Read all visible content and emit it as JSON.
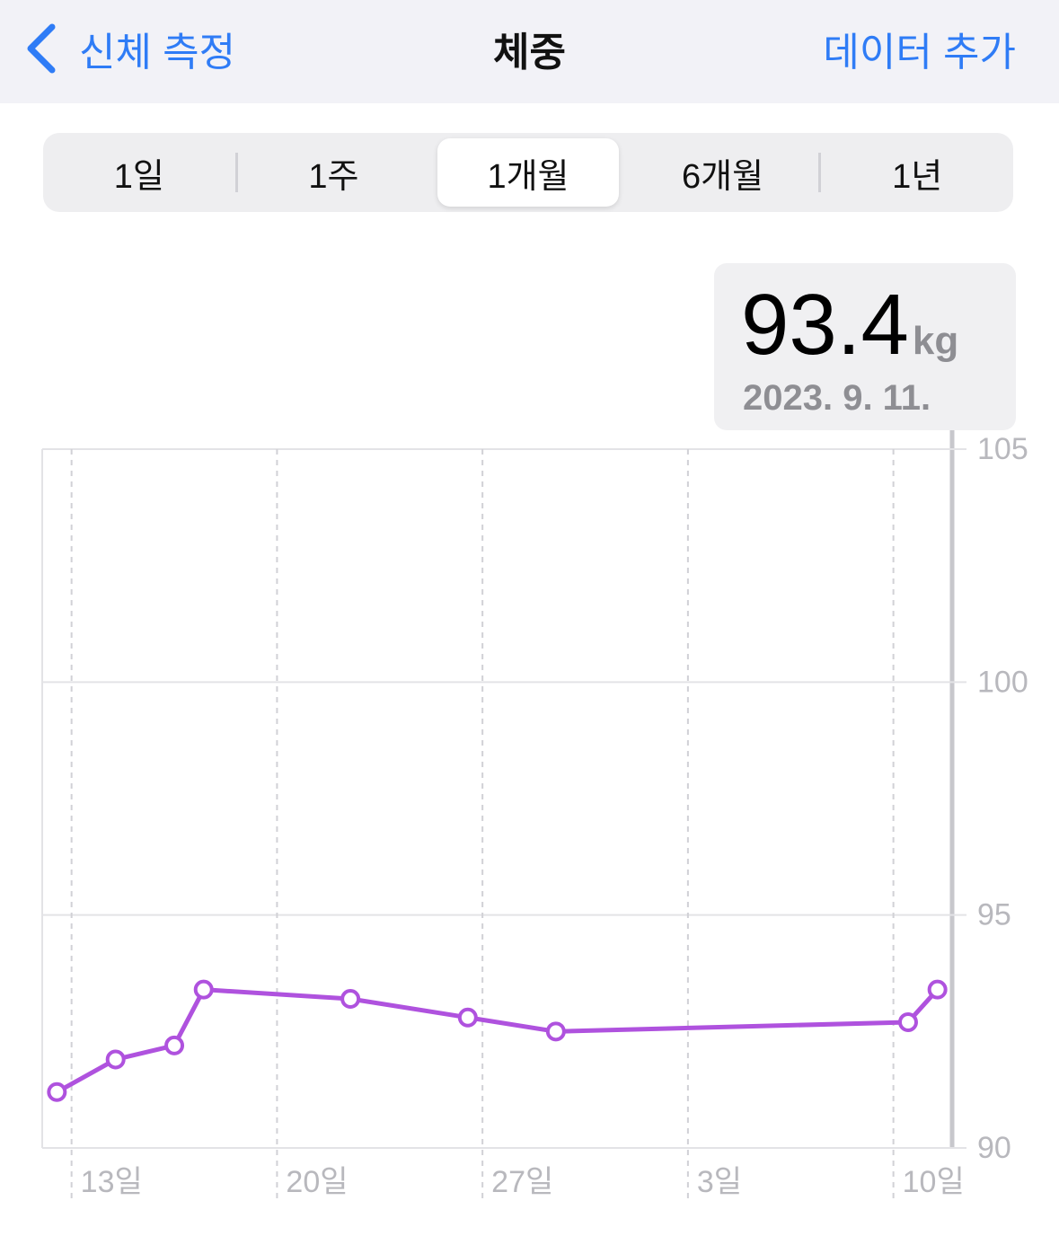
{
  "nav": {
    "back": "신체 측정",
    "title": "체중",
    "action": "데이터 추가"
  },
  "segments": {
    "items": [
      "1일",
      "1주",
      "1개월",
      "6개월",
      "1년"
    ],
    "active": "1개월"
  },
  "summary": {
    "value": 93.4,
    "unit": "kg",
    "date": "2023. 9. 11."
  },
  "chart_data": {
    "type": "line",
    "x": [
      "2023-08-12",
      "2023-08-14",
      "2023-08-16",
      "2023-08-17",
      "2023-08-22",
      "2023-08-26",
      "2023-08-29",
      "2023-09-10",
      "2023-09-11"
    ],
    "values": [
      91.2,
      91.9,
      92.2,
      93.4,
      93.2,
      92.8,
      92.5,
      92.7,
      93.4
    ],
    "color": "#af52de",
    "xlim": [
      "2023-08-12",
      "2023-09-11"
    ],
    "xticks": [
      {
        "value": "2023-08-13",
        "label": "13일"
      },
      {
        "value": "2023-08-20",
        "label": "20일"
      },
      {
        "value": "2023-08-27",
        "label": "27일"
      },
      {
        "value": "2023-09-03",
        "label": "3일"
      },
      {
        "value": "2023-09-10",
        "label": "10일"
      }
    ],
    "ylim": [
      90,
      105
    ],
    "yticks": [
      90,
      95,
      100,
      105
    ],
    "grid": true
  }
}
